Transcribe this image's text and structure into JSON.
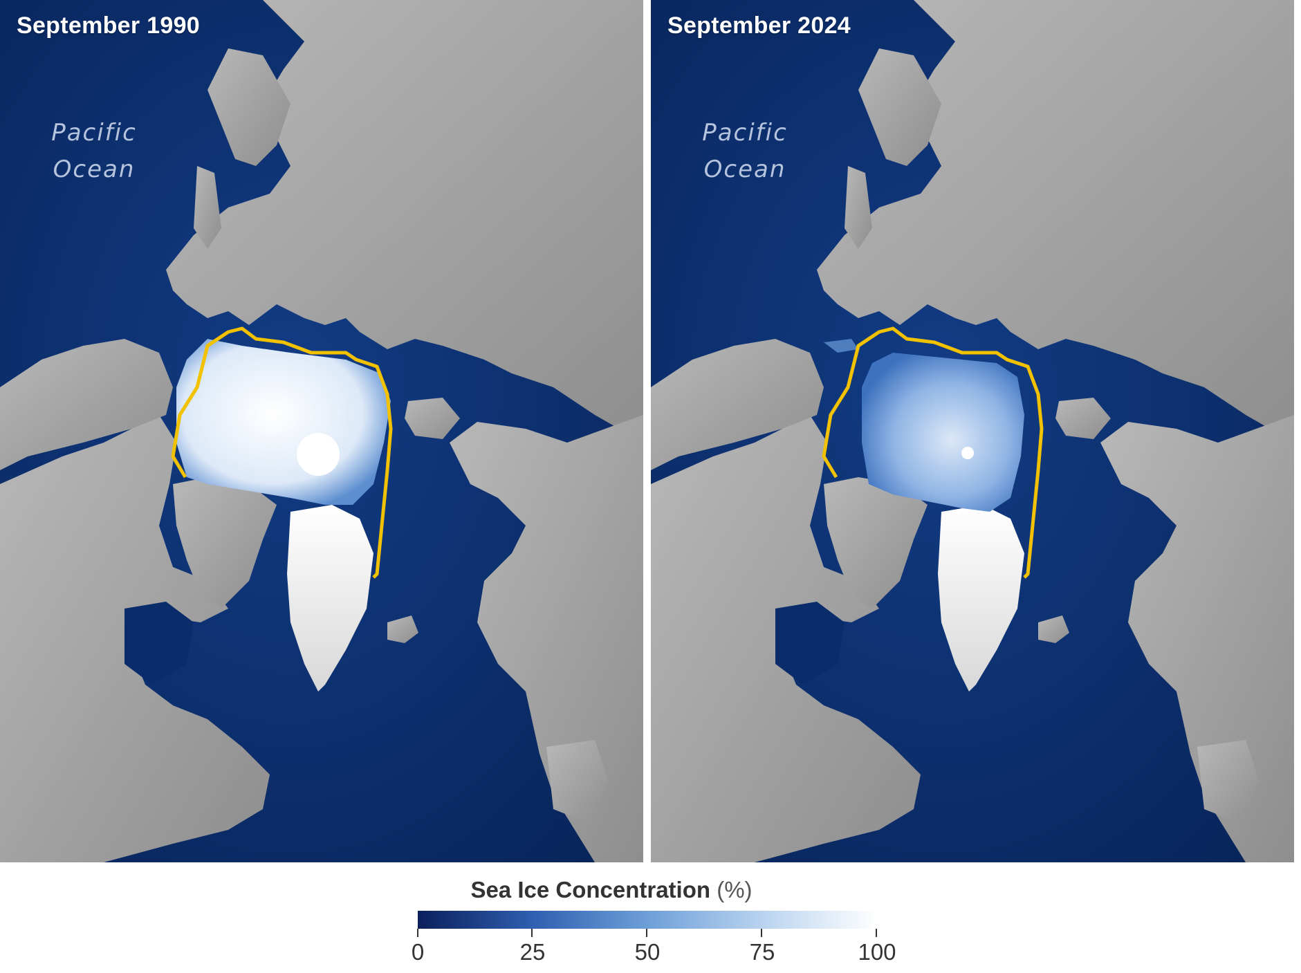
{
  "panels": [
    {
      "title": "September 1990",
      "ocean_label": [
        "Pacific",
        "Ocean"
      ]
    },
    {
      "title": "September 2024",
      "ocean_label": [
        "Pacific",
        "Ocean"
      ]
    }
  ],
  "legend": {
    "title": "Sea Ice Concentration",
    "unit": "(%)",
    "ticks": [
      "0",
      "25",
      "50",
      "75",
      "100"
    ],
    "gradient": [
      "#0b1f5c",
      "#2f5fb0",
      "#6e9fd8",
      "#b9d3ef",
      "#ffffff"
    ]
  },
  "colors": {
    "ocean": "#0a2a66",
    "land": "#a9a9a9",
    "median_ice_edge": "#f2c200",
    "ice_high": "#f5f9ff",
    "ice_low": "#3f78c4"
  }
}
